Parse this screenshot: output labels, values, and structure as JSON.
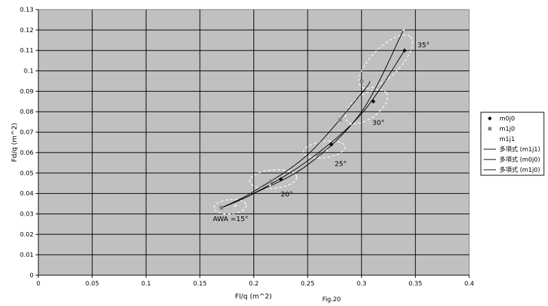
{
  "chart_data": {
    "type": "scatter",
    "title": "",
    "xlabel": "Fl/q (m^2)",
    "ylabel": "Fd/q (m^2)",
    "caption": "Fig.20",
    "xlim": [
      0,
      0.4
    ],
    "ylim": [
      0,
      0.13
    ],
    "x_ticks": [
      "0",
      "0.05",
      "0.1",
      "0.15",
      "0.2",
      "0.25",
      "0.3",
      "0.35",
      "0.4"
    ],
    "y_ticks": [
      "0",
      "0.01",
      "0.02",
      "0.03",
      "0.04",
      "0.05",
      "0.06",
      "0.07",
      "0.08",
      "0.09",
      "0.1",
      "0.11",
      "0.12",
      "0.13"
    ],
    "grid": true,
    "plot_background": "#c0c0c0",
    "legend_position": "right",
    "series": [
      {
        "name": "m0j0",
        "marker": "diamond",
        "color": "#000000",
        "points": [
          [
            0.17,
            0.033
          ],
          [
            0.225,
            0.047
          ],
          [
            0.272,
            0.064
          ],
          [
            0.311,
            0.085
          ],
          [
            0.34,
            0.11
          ]
        ]
      },
      {
        "name": "m1j0",
        "marker": "square",
        "color": "#808080",
        "points": [
          [
            0.17,
            0.033
          ],
          [
            0.216,
            0.046
          ],
          [
            0.26,
            0.059
          ],
          [
            0.28,
            0.076
          ],
          [
            0.3,
            0.095
          ]
        ]
      },
      {
        "name": "m1j1",
        "marker": "none",
        "color": "#ffffff",
        "points": [
          [
            0.183,
            0.034
          ],
          [
            0.215,
            0.044
          ],
          [
            0.268,
            0.061
          ],
          [
            0.29,
            0.074
          ],
          [
            0.339,
            0.12
          ]
        ]
      }
    ],
    "trendlines": [
      {
        "name": "多項式 (m1j1)",
        "color": "#000000",
        "points": [
          [
            0.17,
            0.033
          ],
          [
            0.2,
            0.04
          ],
          [
            0.25,
            0.054
          ],
          [
            0.3,
            0.08
          ],
          [
            0.339,
            0.12
          ]
        ]
      },
      {
        "name": "多項式 (m0j0)",
        "color": "#000000",
        "points": [
          [
            0.17,
            0.033
          ],
          [
            0.2,
            0.04
          ],
          [
            0.25,
            0.056
          ],
          [
            0.3,
            0.079
          ],
          [
            0.34,
            0.11
          ]
        ]
      },
      {
        "name": "多項式 (m1j0)",
        "color": "#000000",
        "points": [
          [
            0.17,
            0.033
          ],
          [
            0.2,
            0.041
          ],
          [
            0.25,
            0.059
          ],
          [
            0.3,
            0.089
          ],
          [
            0.308,
            0.095
          ]
        ]
      }
    ],
    "annotations": [
      {
        "text": "AWA =15°",
        "x": 0.162,
        "y": 0.0265
      },
      {
        "text": "20°",
        "x": 0.225,
        "y": 0.0385
      },
      {
        "text": "25°",
        "x": 0.275,
        "y": 0.0535
      },
      {
        "text": "30°",
        "x": 0.31,
        "y": 0.0735
      },
      {
        "text": "35°",
        "x": 0.352,
        "y": 0.1115
      }
    ],
    "groups": [
      {
        "cx": 0.178,
        "cy": 0.0335,
        "rx": 0.015,
        "ry": 0.0035,
        "rot": -5
      },
      {
        "cx": 0.218,
        "cy": 0.047,
        "rx": 0.022,
        "ry": 0.0045,
        "rot": -5
      },
      {
        "cx": 0.2655,
        "cy": 0.0615,
        "rx": 0.0195,
        "ry": 0.004,
        "rot": -8
      },
      {
        "cx": 0.3045,
        "cy": 0.0825,
        "rx": 0.0225,
        "ry": 0.006,
        "rot": -35
      },
      {
        "cx": 0.3225,
        "cy": 0.1045,
        "rx": 0.0325,
        "ry": 0.007,
        "rot": -45
      }
    ]
  }
}
